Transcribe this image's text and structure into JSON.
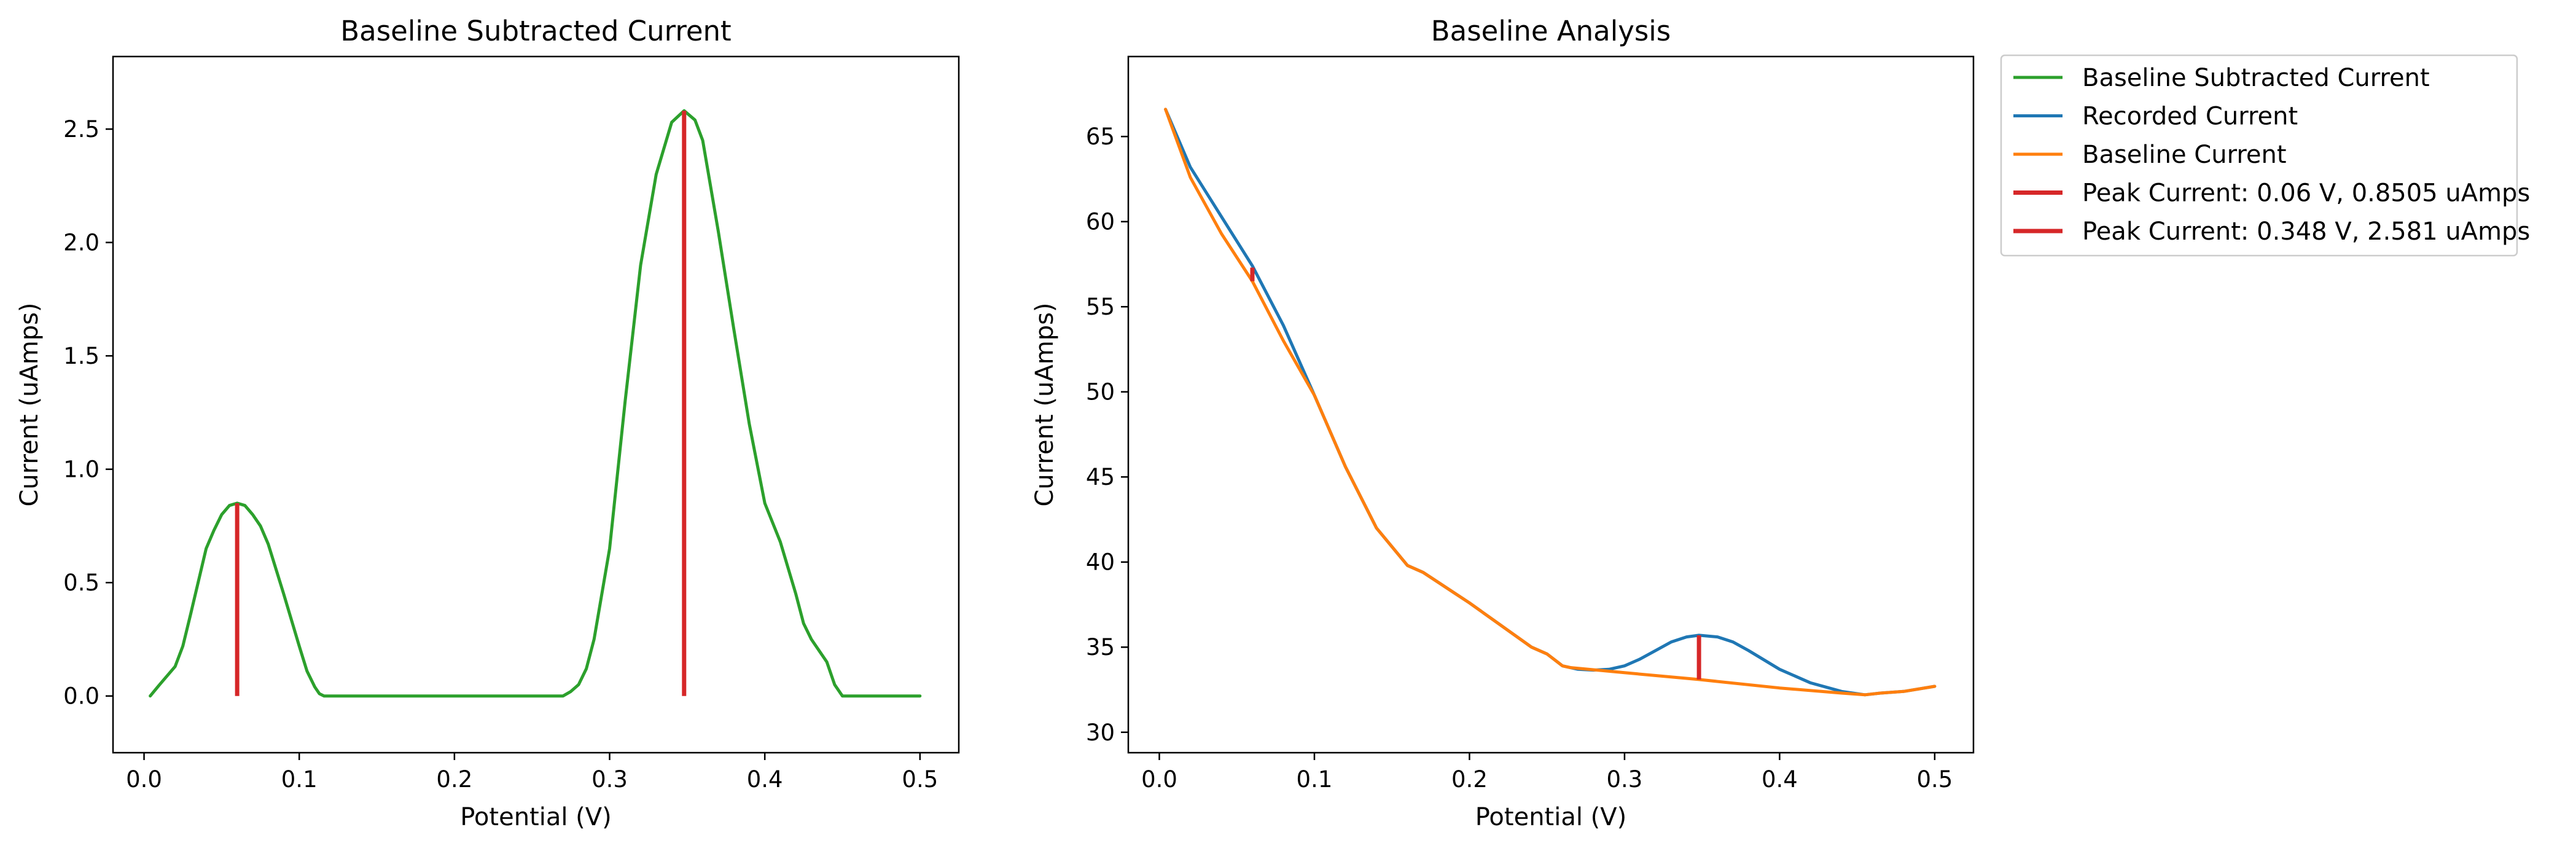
{
  "chart_data": [
    {
      "type": "line",
      "title": "Baseline Subtracted Current",
      "xlabel": "Potential (V)",
      "ylabel": "Current (uAmps)",
      "xlim": [
        -0.02,
        0.525
      ],
      "ylim": [
        -0.25,
        2.82
      ],
      "x_ticks": [
        "0.0",
        "0.1",
        "0.2",
        "0.3",
        "0.4",
        "0.5"
      ],
      "y_ticks": [
        "0.0",
        "0.5",
        "1.0",
        "1.5",
        "2.0",
        "2.5"
      ],
      "grid": false,
      "series": [
        {
          "name": "Baseline Subtracted Current",
          "color": "#2ca02c",
          "x": [
            0.004,
            0.01,
            0.02,
            0.025,
            0.03,
            0.04,
            0.045,
            0.05,
            0.055,
            0.06,
            0.065,
            0.07,
            0.075,
            0.08,
            0.09,
            0.1,
            0.105,
            0.11,
            0.113,
            0.116,
            0.12,
            0.15,
            0.2,
            0.25,
            0.27,
            0.275,
            0.28,
            0.285,
            0.29,
            0.3,
            0.31,
            0.32,
            0.33,
            0.34,
            0.348,
            0.355,
            0.36,
            0.37,
            0.38,
            0.39,
            0.4,
            0.41,
            0.42,
            0.425,
            0.43,
            0.435,
            0.44,
            0.445,
            0.45,
            0.455,
            0.46,
            0.5
          ],
          "y": [
            0.0,
            0.05,
            0.13,
            0.22,
            0.36,
            0.65,
            0.73,
            0.8,
            0.84,
            0.8505,
            0.84,
            0.8,
            0.75,
            0.67,
            0.45,
            0.22,
            0.11,
            0.04,
            0.01,
            0.0,
            0.0,
            0.0,
            0.0,
            0.0,
            0.0,
            0.02,
            0.05,
            0.12,
            0.25,
            0.65,
            1.3,
            1.9,
            2.3,
            2.53,
            2.581,
            2.54,
            2.45,
            2.05,
            1.62,
            1.2,
            0.85,
            0.68,
            0.45,
            0.32,
            0.25,
            0.2,
            0.15,
            0.05,
            0.0,
            0.0,
            0.0,
            0.0
          ]
        }
      ],
      "peaks": [
        {
          "x": 0.06,
          "y": 0.8505,
          "color": "#d62728"
        },
        {
          "x": 0.348,
          "y": 2.581,
          "color": "#d62728"
        }
      ]
    },
    {
      "type": "line",
      "title": "Baseline Analysis",
      "xlabel": "Potential (V)",
      "ylabel": "Current (uAmps)",
      "xlim": [
        -0.02,
        0.525
      ],
      "ylim": [
        28.8,
        69.7
      ],
      "x_ticks": [
        "0.0",
        "0.1",
        "0.2",
        "0.3",
        "0.4",
        "0.5"
      ],
      "y_ticks": [
        "30",
        "35",
        "40",
        "45",
        "50",
        "55",
        "60",
        "65"
      ],
      "grid": false,
      "series": [
        {
          "name": "Recorded Current",
          "color": "#1f77b4",
          "x": [
            0.004,
            0.02,
            0.04,
            0.06,
            0.08,
            0.1,
            0.12,
            0.14,
            0.16,
            0.17,
            0.18,
            0.19,
            0.2,
            0.22,
            0.24,
            0.25,
            0.26,
            0.27,
            0.28,
            0.29,
            0.3,
            0.31,
            0.32,
            0.33,
            0.34,
            0.348,
            0.36,
            0.37,
            0.38,
            0.4,
            0.42,
            0.44,
            0.455,
            0.465,
            0.48,
            0.5
          ],
          "y": [
            66.6,
            63.2,
            60.3,
            57.4,
            53.9,
            49.8,
            45.6,
            42.0,
            39.8,
            39.4,
            38.8,
            38.2,
            37.6,
            36.3,
            35.0,
            34.6,
            33.9,
            33.7,
            33.65,
            33.7,
            33.9,
            34.3,
            34.8,
            35.3,
            35.6,
            35.7,
            35.6,
            35.3,
            34.8,
            33.7,
            32.9,
            32.4,
            32.2,
            32.3,
            32.4,
            32.7
          ]
        },
        {
          "name": "Baseline Current",
          "color": "#ff7f0e",
          "x": [
            0.004,
            0.02,
            0.04,
            0.06,
            0.08,
            0.1,
            0.12,
            0.14,
            0.16,
            0.17,
            0.18,
            0.19,
            0.2,
            0.22,
            0.24,
            0.25,
            0.26,
            0.265,
            0.3,
            0.348,
            0.4,
            0.44,
            0.455,
            0.465,
            0.48,
            0.5
          ],
          "y": [
            66.6,
            62.6,
            59.3,
            56.5,
            53.0,
            49.8,
            45.6,
            42.0,
            39.8,
            39.4,
            38.8,
            38.2,
            37.6,
            36.3,
            35.0,
            34.6,
            33.9,
            33.8,
            33.5,
            33.1,
            32.6,
            32.3,
            32.2,
            32.3,
            32.4,
            32.7
          ]
        }
      ],
      "peaks": [
        {
          "x": 0.06,
          "y0": 56.5,
          "y1": 57.3,
          "color": "#d62728"
        },
        {
          "x": 0.348,
          "y0": 33.1,
          "y1": 35.7,
          "color": "#d62728"
        }
      ]
    }
  ],
  "legend": {
    "placement": "outside-right",
    "entries": [
      {
        "label": "Baseline Subtracted Current",
        "color": "#2ca02c"
      },
      {
        "label": "Recorded Current",
        "color": "#1f77b4"
      },
      {
        "label": "Baseline Current",
        "color": "#ff7f0e"
      },
      {
        "label": "Peak Current: 0.06 V, 0.8505 uAmps",
        "color": "#d62728"
      },
      {
        "label": "Peak Current: 0.348 V, 2.581 uAmps",
        "color": "#d62728"
      }
    ]
  }
}
